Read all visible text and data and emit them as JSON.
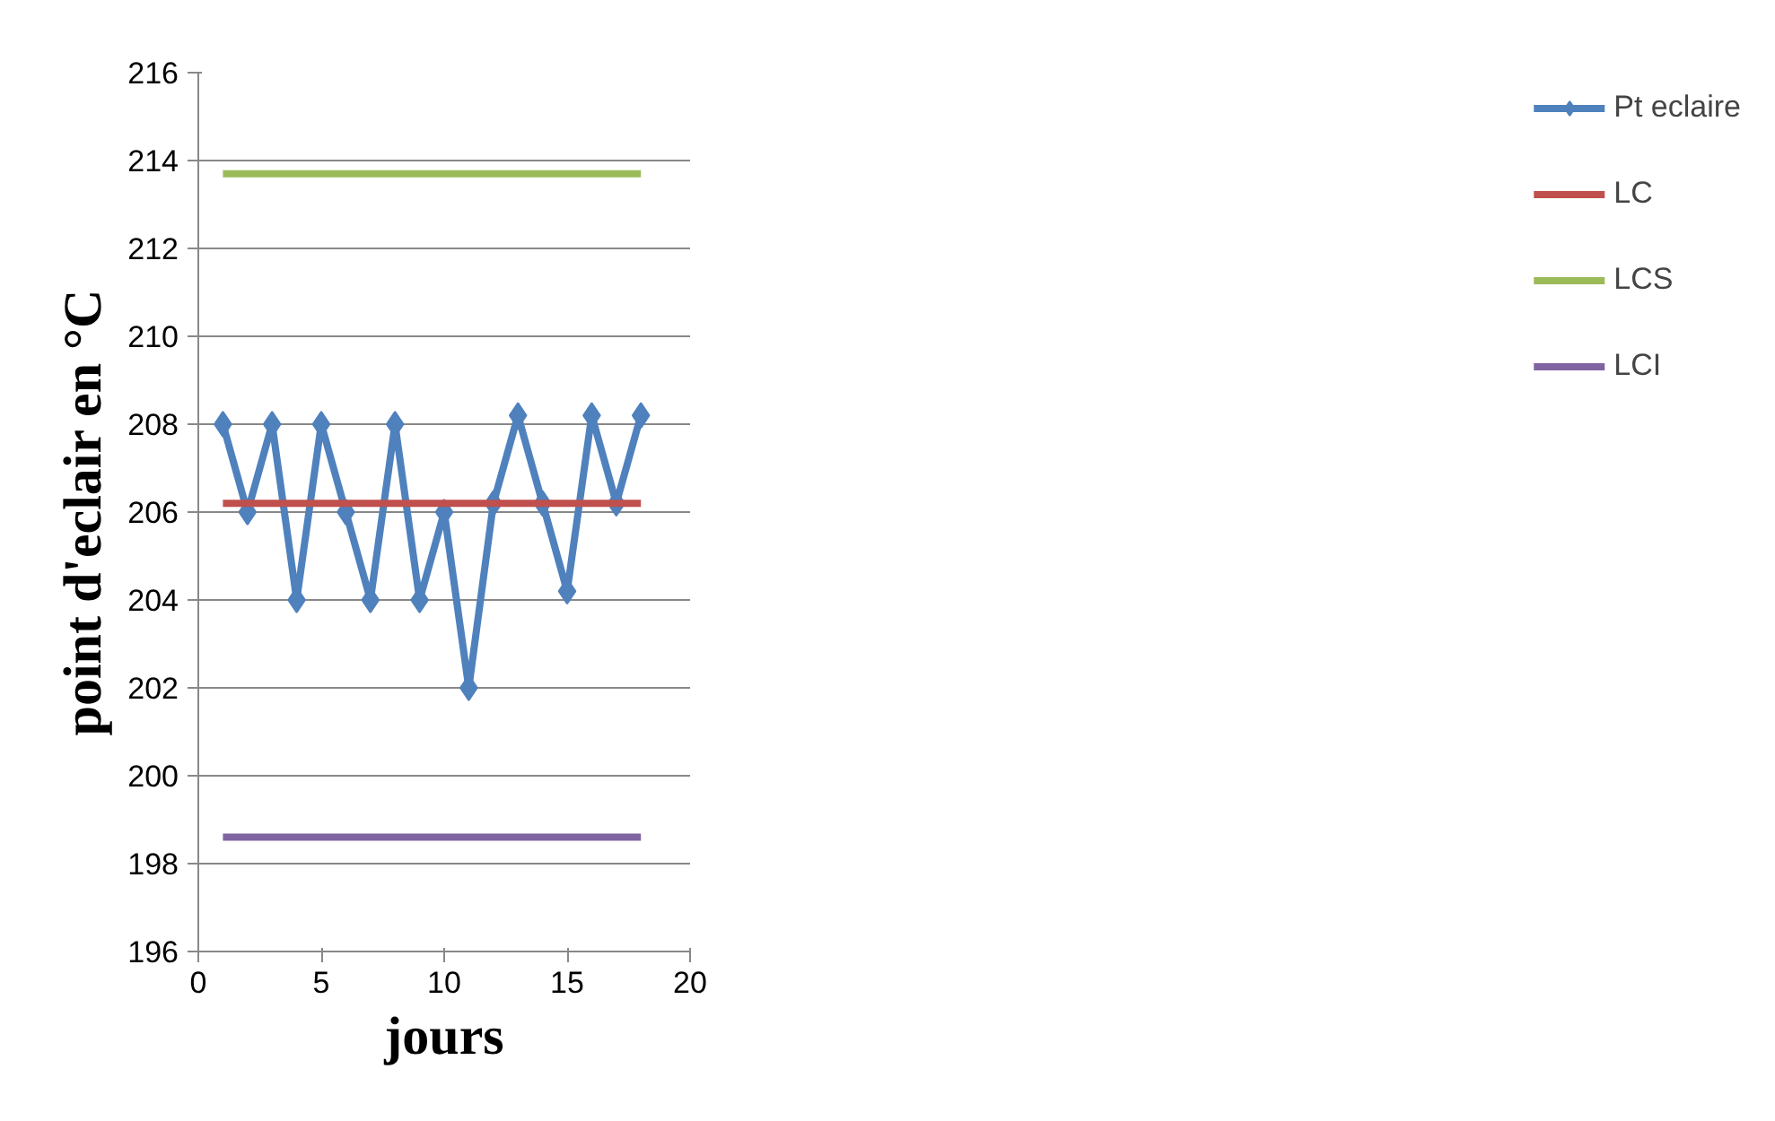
{
  "chart_data": {
    "type": "line",
    "xlabel": "jours",
    "ylabel": "point d'eclair en °C",
    "xlim": [
      0,
      20
    ],
    "xticks": [
      0,
      5,
      10,
      15,
      20
    ],
    "ylim": [
      196,
      216
    ],
    "yticks": [
      196,
      198,
      200,
      202,
      204,
      206,
      208,
      210,
      212,
      214,
      216
    ],
    "grid": "y",
    "legend": "right",
    "line_style": "solid",
    "series": [
      {
        "name": "Pt eclaire",
        "color": "#4f81bd",
        "marker": "diamond",
        "x": [
          1,
          2,
          3,
          4,
          5,
          6,
          7,
          8,
          9,
          10,
          11,
          12,
          13,
          14,
          15,
          16,
          17,
          18
        ],
        "values": [
          208,
          206,
          208,
          204,
          208,
          206,
          204,
          208,
          204,
          206,
          202,
          206.2,
          208.2,
          206.2,
          204.2,
          208.2,
          206.2,
          208.2
        ]
      },
      {
        "name": "LC",
        "color": "#c0504d",
        "marker": "none",
        "x": [
          1,
          18
        ],
        "values": [
          206.2,
          206.2
        ]
      },
      {
        "name": "LCS",
        "color": "#9bbb59",
        "marker": "none",
        "x": [
          1,
          18
        ],
        "values": [
          213.7,
          213.7
        ]
      },
      {
        "name": "LCI",
        "color": "#8064a2",
        "marker": "none",
        "x": [
          1,
          18
        ],
        "values": [
          198.6,
          198.6
        ]
      }
    ]
  }
}
